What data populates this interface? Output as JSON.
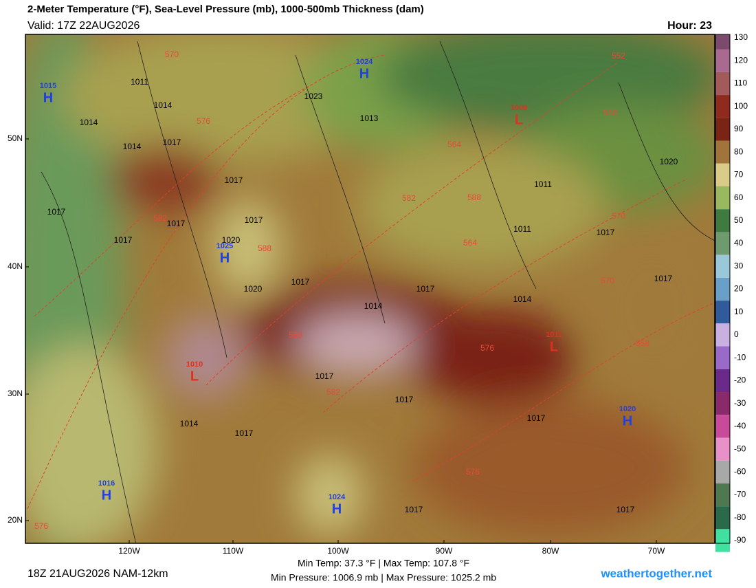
{
  "header": {
    "title": "2-Meter Temperature (°F), Sea-Level Pressure (mb), 1000-500mb Thickness (dam)",
    "valid": "Valid: 17Z 22AUG2026",
    "hour": "Hour: 23"
  },
  "latitude_labels": [
    "50N",
    "40N",
    "30N",
    "20N"
  ],
  "longitude_labels": [
    "120W",
    "110W",
    "100W",
    "90W",
    "80W",
    "70W"
  ],
  "colorbar": {
    "ticks": [
      130,
      120,
      110,
      100,
      90,
      80,
      70,
      60,
      50,
      40,
      30,
      20,
      10,
      0,
      -10,
      -20,
      -30,
      -40,
      -50,
      -60,
      -70,
      -80,
      -90
    ],
    "colors": [
      "#7c4a6c",
      "#a86a8e",
      "#a35a5a",
      "#8e2a1e",
      "#7a2416",
      "#a0743a",
      "#d8cc88",
      "#9ab860",
      "#3f7a40",
      "#6f9a6e",
      "#9ac8d8",
      "#6aa0c8",
      "#305a9a",
      "#c8b0e0",
      "#9a6ac8",
      "#6a2a8a",
      "#8a2a6a",
      "#c84a9a",
      "#e890c8",
      "#a8a8a8",
      "#507850",
      "#2a6a4a",
      "#40e0a0"
    ]
  },
  "pressure_centers": [
    {
      "letter": "H",
      "value": 1015
    },
    {
      "letter": "H",
      "value": 1024
    },
    {
      "letter": "L",
      "value": 1009
    },
    {
      "letter": "H",
      "value": 1025
    },
    {
      "letter": "L",
      "value": 1010
    },
    {
      "letter": "L",
      "value": 1011
    },
    {
      "letter": "H",
      "value": 1020
    },
    {
      "letter": "H",
      "value": 1016
    },
    {
      "letter": "H",
      "value": 1024
    }
  ],
  "isobar_labels": [
    1011,
    1014,
    1014,
    1017,
    1014,
    1017,
    1023,
    1013,
    1017,
    1017,
    1017,
    1020,
    1017,
    1020,
    1017,
    1014,
    1017,
    1014,
    1011,
    1011,
    1017,
    1020,
    1017,
    1014,
    1017,
    1017,
    1017,
    1017,
    1017,
    1017
  ],
  "thickness_labels": [
    570,
    576,
    582,
    588,
    582,
    588,
    552,
    558,
    564,
    570,
    576,
    582,
    588,
    576,
    564,
    570,
    558,
    576
  ],
  "footer": {
    "run": "18Z 21AUG2026 NAM-12km",
    "temp_range": "Min Temp: 37.3 °F | Max Temp: 107.8 °F",
    "pressure_range": "Min Pressure: 1006.9 mb | Max Pressure: 1025.2 mb",
    "site": "weathertogether.net"
  }
}
